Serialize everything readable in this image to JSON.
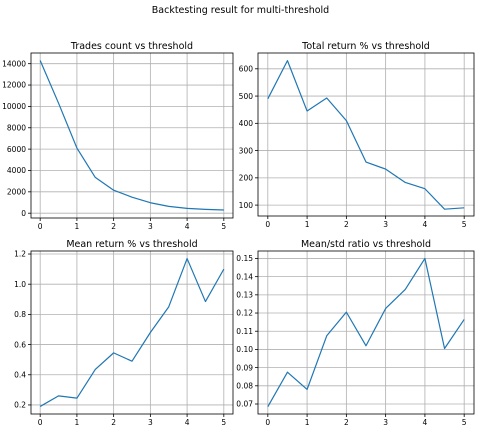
{
  "figure": {
    "suptitle": "Backtesting result for multi-threshold",
    "line_color": "#1f77b4"
  },
  "chart_data": [
    {
      "type": "line",
      "title": "Trades count vs threshold",
      "xlabel": "",
      "ylabel": "",
      "x": [
        0,
        0.5,
        1,
        1.5,
        2,
        2.5,
        3,
        3.5,
        4,
        4.5,
        5
      ],
      "y": [
        14300,
        10300,
        6100,
        3350,
        2150,
        1500,
        980,
        640,
        450,
        360,
        300
      ],
      "xlim": [
        -0.25,
        5.25
      ],
      "ylim": [
        -450,
        15000
      ],
      "xticks": [
        0,
        1,
        2,
        3,
        4,
        5
      ],
      "yticks": [
        0,
        2000,
        4000,
        6000,
        8000,
        10000,
        12000,
        14000
      ],
      "grid": true
    },
    {
      "type": "line",
      "title": "Total return % vs threshold",
      "xlabel": "",
      "ylabel": "",
      "x": [
        0,
        0.5,
        1,
        1.5,
        2,
        2.5,
        3,
        3.5,
        4,
        4.5,
        5
      ],
      "y": [
        490,
        630,
        445,
        493,
        410,
        258,
        232,
        183,
        160,
        85,
        90
      ],
      "xlim": [
        -0.25,
        5.25
      ],
      "ylim": [
        60,
        658
      ],
      "xticks": [
        0,
        1,
        2,
        3,
        4,
        5
      ],
      "yticks": [
        100,
        200,
        300,
        400,
        500,
        600
      ],
      "grid": true
    },
    {
      "type": "line",
      "title": "Mean return % vs threshold",
      "xlabel": "",
      "ylabel": "",
      "x": [
        0,
        0.5,
        1,
        1.5,
        2,
        2.5,
        3,
        3.5,
        4,
        4.5,
        5
      ],
      "y": [
        0.19,
        0.26,
        0.245,
        0.435,
        0.545,
        0.49,
        0.68,
        0.85,
        1.17,
        0.885,
        1.1
      ],
      "xlim": [
        -0.25,
        5.25
      ],
      "ylim": [
        0.14,
        1.22
      ],
      "xticks": [
        0,
        1,
        2,
        3,
        4,
        5
      ],
      "yticks": [
        0.2,
        0.4,
        0.6,
        0.8,
        1.0,
        1.2
      ],
      "yticklabels": [
        "0.2",
        "0.4",
        "0.6",
        "0.8",
        "1.0",
        "1.2"
      ],
      "grid": true
    },
    {
      "type": "line",
      "title": "Mean/std ratio vs threshold",
      "xlabel": "",
      "ylabel": "",
      "x": [
        0,
        0.5,
        1,
        1.5,
        2,
        2.5,
        3,
        3.5,
        4,
        4.5,
        5
      ],
      "y": [
        0.0685,
        0.0875,
        0.078,
        0.1075,
        0.1205,
        0.102,
        0.1225,
        0.133,
        0.15,
        0.1005,
        0.1165
      ],
      "xlim": [
        -0.25,
        5.25
      ],
      "ylim": [
        0.0645,
        0.1541
      ],
      "xticks": [
        0,
        1,
        2,
        3,
        4,
        5
      ],
      "yticks": [
        0.07,
        0.08,
        0.09,
        0.1,
        0.11,
        0.12,
        0.13,
        0.14,
        0.15
      ],
      "yticklabels": [
        "0.07",
        "0.08",
        "0.09",
        "0.10",
        "0.11",
        "0.12",
        "0.13",
        "0.14",
        "0.15"
      ],
      "grid": true
    }
  ]
}
